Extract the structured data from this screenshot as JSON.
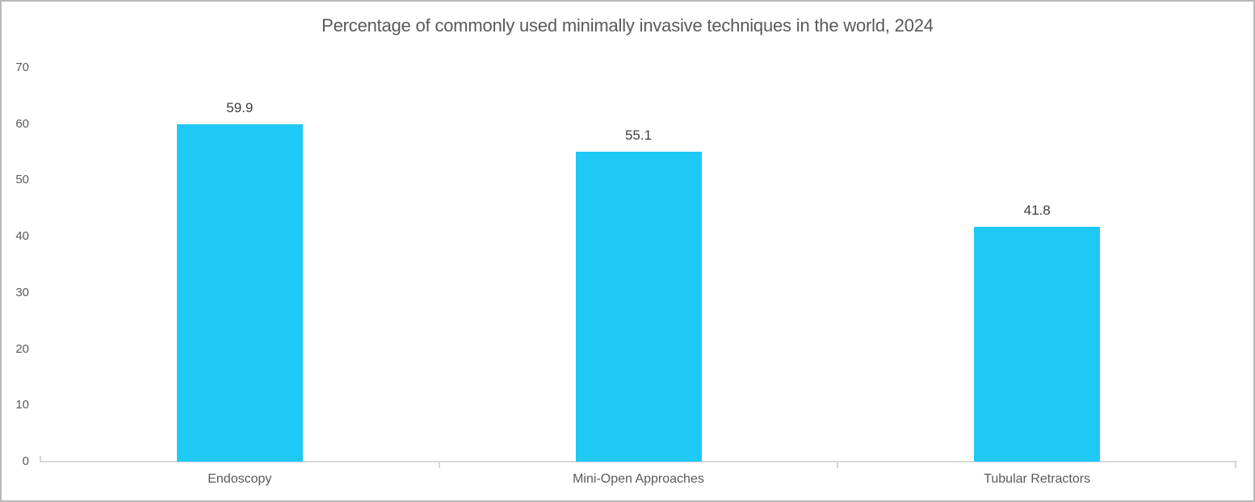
{
  "chart_data": {
    "type": "bar",
    "title": "Percentage of commonly used minimally invasive techniques in the world, 2024",
    "categories": [
      "Endoscopy",
      "Mini-Open Approaches",
      "Tubular Retractors"
    ],
    "values": [
      59.9,
      55.1,
      41.8
    ],
    "data_labels": [
      "59.9",
      "55.1",
      "41.8"
    ],
    "xlabel": "",
    "ylabel": "",
    "ylim": [
      0,
      70
    ],
    "yticks": [
      0,
      10,
      20,
      30,
      40,
      50,
      60,
      70
    ],
    "grid": false,
    "legend": false,
    "bar_color": "#1ec9f6"
  },
  "colors": {
    "bar": "#1ec9f6",
    "title_text": "#595959",
    "axis_label_text": "#595959",
    "value_label_text": "#3f3f3f",
    "axis_line": "#d9d9d9",
    "frame_border": "#b9b9b9",
    "background": "#ffffff"
  }
}
